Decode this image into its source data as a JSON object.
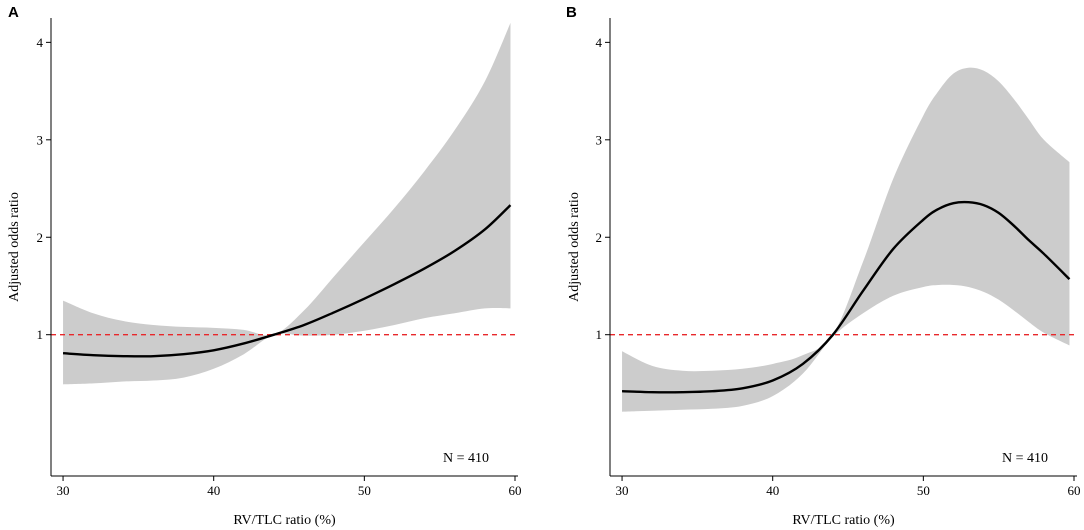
{
  "reference_line_color": "#e8282b",
  "band_color": "#cccccc",
  "curve_color": "#000000",
  "chart_data": [
    {
      "panel": "A",
      "type": "line",
      "xlabel": "RV/TLC ratio (%)",
      "ylabel": "Adjusted  odds ratio",
      "xlim": [
        29.2,
        60.2
      ],
      "ylim": [
        -0.45,
        4.25
      ],
      "xticks": [
        30,
        40,
        50,
        60
      ],
      "yticks": [
        1,
        2,
        3,
        4
      ],
      "reference_y": 1,
      "annotation": "N = 410",
      "series": [
        {
          "name": "estimate",
          "x": [
            30,
            32,
            34,
            36,
            38,
            40,
            42,
            44,
            46,
            48,
            50,
            52,
            54,
            56,
            58,
            59.7
          ],
          "y": [
            0.81,
            0.79,
            0.78,
            0.78,
            0.8,
            0.84,
            0.91,
            1.0,
            1.1,
            1.23,
            1.37,
            1.52,
            1.68,
            1.86,
            2.08,
            2.33
          ]
        },
        {
          "name": "ci_upper",
          "x": [
            30,
            32,
            34,
            36,
            38,
            40,
            42,
            44,
            46,
            48,
            50,
            52,
            54,
            56,
            58,
            59.7
          ],
          "y": [
            1.35,
            1.22,
            1.14,
            1.1,
            1.08,
            1.07,
            1.05,
            1.0,
            1.25,
            1.6,
            1.95,
            2.3,
            2.68,
            3.1,
            3.6,
            4.2
          ]
        },
        {
          "name": "ci_lower",
          "x": [
            30,
            32,
            34,
            36,
            38,
            40,
            42,
            44,
            46,
            48,
            50,
            52,
            54,
            56,
            58,
            59.7
          ],
          "y": [
            0.49,
            0.5,
            0.52,
            0.53,
            0.56,
            0.65,
            0.8,
            1.0,
            0.99,
            1.0,
            1.04,
            1.1,
            1.17,
            1.22,
            1.27,
            1.27
          ]
        }
      ]
    },
    {
      "panel": "B",
      "type": "line",
      "xlabel": "RV/TLC ratio (%)",
      "ylabel": "Adjusted  odds ratio",
      "xlim": [
        29.2,
        60.2
      ],
      "ylim": [
        -0.45,
        4.25
      ],
      "xticks": [
        30,
        40,
        50,
        60
      ],
      "yticks": [
        1,
        2,
        3,
        4
      ],
      "reference_y": 1,
      "annotation": "N = 410",
      "series": [
        {
          "name": "estimate",
          "x": [
            30,
            32,
            34,
            36,
            38,
            40,
            42,
            44,
            46,
            48,
            50,
            51,
            52,
            53,
            54,
            55,
            56,
            57,
            58,
            59.7
          ],
          "y": [
            0.42,
            0.41,
            0.41,
            0.42,
            0.45,
            0.53,
            0.7,
            1.0,
            1.45,
            1.88,
            2.18,
            2.29,
            2.35,
            2.36,
            2.33,
            2.25,
            2.12,
            1.97,
            1.83,
            1.57
          ]
        },
        {
          "name": "ci_upper",
          "x": [
            30,
            32,
            34,
            36,
            38,
            40,
            42,
            44,
            46,
            48,
            50,
            51,
            52,
            53,
            54,
            55,
            56,
            57,
            58,
            59.7
          ],
          "y": [
            0.83,
            0.68,
            0.63,
            0.63,
            0.65,
            0.7,
            0.79,
            1.0,
            1.75,
            2.6,
            3.25,
            3.5,
            3.68,
            3.74,
            3.71,
            3.6,
            3.42,
            3.21,
            3.0,
            2.77
          ]
        },
        {
          "name": "ci_lower",
          "x": [
            30,
            32,
            34,
            36,
            38,
            40,
            42,
            44,
            46,
            48,
            50,
            51,
            52,
            53,
            54,
            55,
            56,
            57,
            58,
            59.7
          ],
          "y": [
            0.21,
            0.22,
            0.23,
            0.24,
            0.27,
            0.37,
            0.6,
            0.98,
            1.22,
            1.4,
            1.49,
            1.51,
            1.51,
            1.49,
            1.44,
            1.36,
            1.25,
            1.13,
            1.02,
            0.89
          ]
        }
      ]
    }
  ]
}
